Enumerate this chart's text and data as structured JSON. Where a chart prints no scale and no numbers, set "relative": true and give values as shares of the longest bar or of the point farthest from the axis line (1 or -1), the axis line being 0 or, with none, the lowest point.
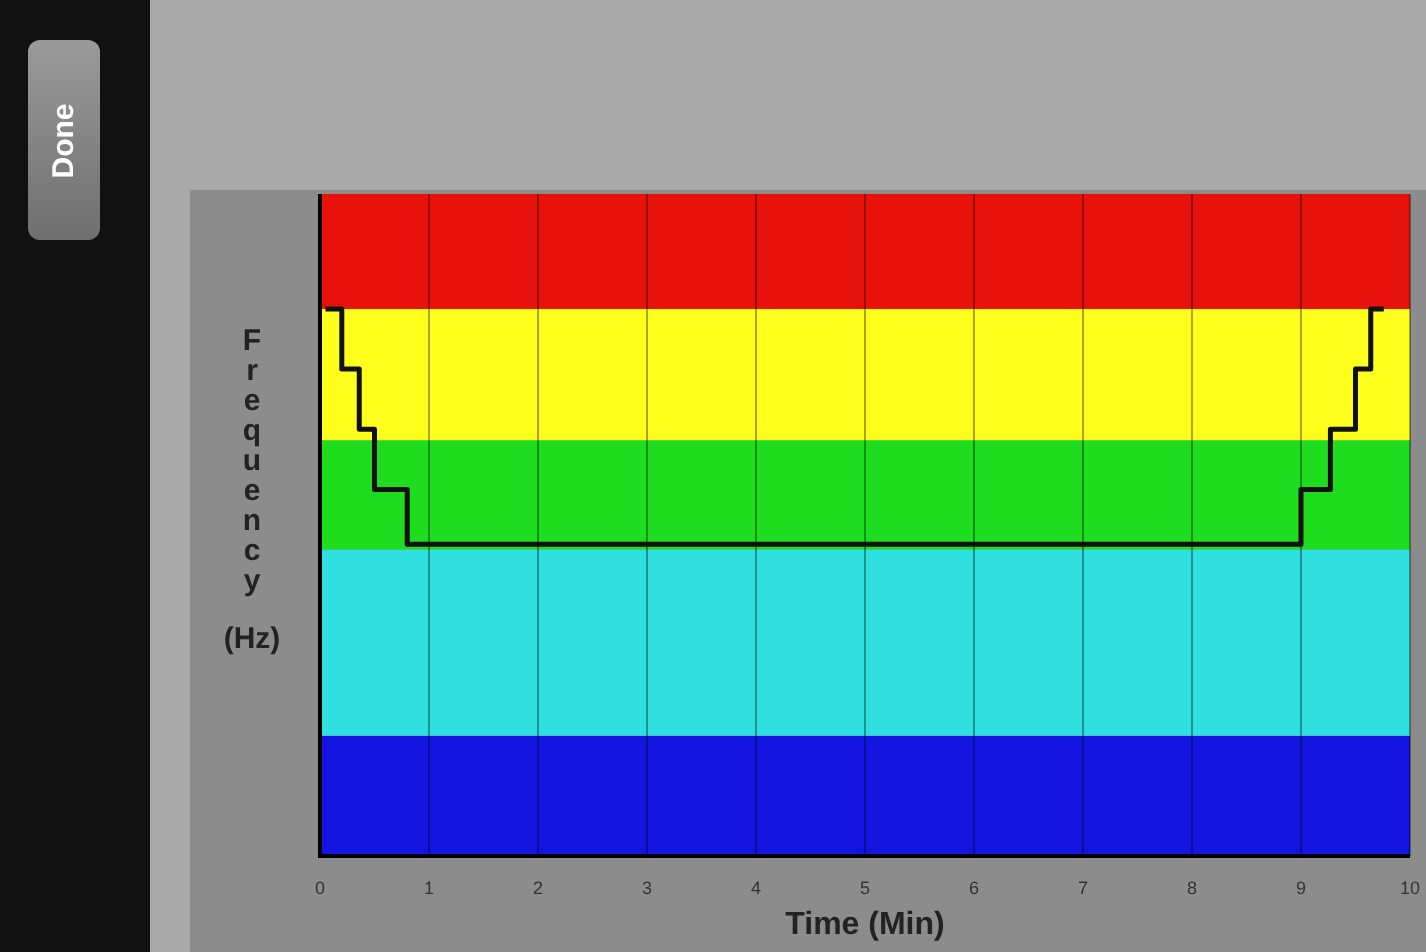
{
  "chart_data": {
    "type": "step",
    "relative": true,
    "xlabel": "Time (Min)",
    "ylabel": "Frequency (Hz)",
    "xlim": [
      0,
      10
    ],
    "xticks": [
      0,
      1,
      2,
      3,
      4,
      5,
      6,
      7,
      8,
      9,
      10
    ],
    "x": [
      0.05,
      0.2,
      0.36,
      0.5,
      0.8,
      9.0,
      9.27,
      9.5,
      9.64,
      9.76
    ],
    "series": [
      {
        "color": "#111111",
        "values": [
          1,
          0.89,
          0.78,
          0.67,
          0.57,
          0.67,
          0.78,
          0.89,
          1,
          1
        ]
      }
    ],
    "bands": [
      {
        "axis": "y",
        "from": 0,
        "to": 0.22,
        "color": "#1414e0"
      },
      {
        "axis": "y",
        "from": 0.22,
        "to": 0.56,
        "color": "#30e0e0"
      },
      {
        "axis": "y",
        "from": 0.56,
        "to": 0.76,
        "color": "#1edc1e"
      },
      {
        "axis": "y",
        "from": 0.76,
        "to": 1.0,
        "color": "#ffff1e"
      },
      {
        "axis": "y",
        "from": 1.0,
        "to": 1.21,
        "color": "#e8120c"
      }
    ],
    "grid": "x",
    "legend": false,
    "marker": "none",
    "line_style": "solid",
    "annotations": [
      "Done"
    ]
  }
}
